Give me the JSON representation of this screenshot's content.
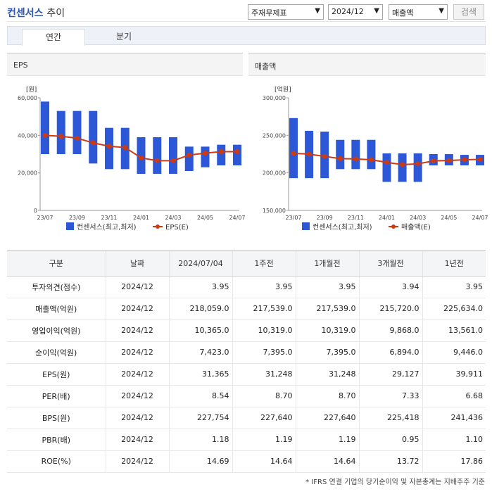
{
  "header": {
    "title": "컨센서스",
    "subtitle": "추이",
    "select_subject": "주재무제표",
    "select_period": "2024/12",
    "select_metric": "매출액",
    "search_label": "검색"
  },
  "tabs": [
    {
      "label": "연간",
      "active": true
    },
    {
      "label": "분기",
      "active": false
    }
  ],
  "colors": {
    "bar": "#2c58d8",
    "line": "#cd3a12",
    "accent": "#2b56b5"
  },
  "chart_data": [
    {
      "type": "bar",
      "title": "EPS",
      "ylabel": "[원]",
      "ylim": [
        0,
        60000
      ],
      "y_ticks": [
        "0",
        "20,000",
        "40,000",
        "60,000"
      ],
      "x_ticks": [
        "23/07",
        "23/09",
        "23/11",
        "24/01",
        "24/03",
        "24/05",
        "24/07"
      ],
      "series": [
        {
          "name": "컨센서스(최고,최저)",
          "type": "range-bar",
          "high": [
            58000,
            53000,
            53000,
            53000,
            44000,
            44000,
            39000,
            39000,
            39000,
            34000,
            34000,
            35000,
            35000
          ],
          "low": [
            30000,
            30000,
            30000,
            25000,
            22000,
            22000,
            19500,
            19500,
            19500,
            21000,
            23000,
            24000,
            24000
          ]
        },
        {
          "name": "EPS(E)",
          "type": "line",
          "values": [
            40000,
            39500,
            38500,
            36000,
            34200,
            33500,
            28000,
            26500,
            26500,
            29500,
            30500,
            31300,
            31300
          ]
        }
      ]
    },
    {
      "type": "bar",
      "title": "매출액",
      "ylabel": "[억원]",
      "ylim": [
        150000,
        300000
      ],
      "y_ticks": [
        "150,000",
        "200,000",
        "250,000",
        "300,000"
      ],
      "x_ticks": [
        "23/07",
        "23/09",
        "23/11",
        "24/01",
        "24/03",
        "24/05",
        "24/07"
      ],
      "series": [
        {
          "name": "컨센서스(최고,최저)",
          "type": "range-bar",
          "high": [
            273000,
            256000,
            255000,
            244000,
            244000,
            244000,
            226000,
            226000,
            226000,
            225000,
            225000,
            224000,
            224000
          ],
          "low": [
            193000,
            193000,
            193000,
            205000,
            205000,
            205000,
            188000,
            188000,
            188000,
            210000,
            210000,
            210000,
            210000
          ]
        },
        {
          "name": "매출액(E)",
          "type": "line",
          "values": [
            226000,
            225000,
            222000,
            219000,
            218500,
            217500,
            214000,
            211000,
            212000,
            216000,
            216500,
            217500,
            218000
          ]
        }
      ]
    }
  ],
  "table": {
    "headers": [
      "구분",
      "날짜",
      "2024/07/04",
      "1주전",
      "1개월전",
      "3개월전",
      "1년전"
    ],
    "rows": [
      [
        "투자의견(점수)",
        "2024/12",
        "3.95",
        "3.95",
        "3.95",
        "3.94",
        "3.95"
      ],
      [
        "매출액(억원)",
        "2024/12",
        "218,059.0",
        "217,539.0",
        "217,539.0",
        "215,720.0",
        "225,634.0"
      ],
      [
        "영업이익(억원)",
        "2024/12",
        "10,365.0",
        "10,319.0",
        "10,319.0",
        "9,868.0",
        "13,561.0"
      ],
      [
        "순이익(억원)",
        "2024/12",
        "7,423.0",
        "7,395.0",
        "7,395.0",
        "6,894.0",
        "9,446.0"
      ],
      [
        "EPS(원)",
        "2024/12",
        "31,365",
        "31,248",
        "31,248",
        "29,127",
        "39,911"
      ],
      [
        "PER(배)",
        "2024/12",
        "8.54",
        "8.70",
        "8.70",
        "7.33",
        "6.68"
      ],
      [
        "BPS(원)",
        "2024/12",
        "227,754",
        "227,640",
        "227,640",
        "225,418",
        "241,436"
      ],
      [
        "PBR(배)",
        "2024/12",
        "1.18",
        "1.19",
        "1.19",
        "0.95",
        "1.10"
      ],
      [
        "ROE(%)",
        "2024/12",
        "14.69",
        "14.64",
        "14.64",
        "13.72",
        "17.86"
      ]
    ]
  },
  "footnote": "* IFRS 연결 기업의 당기순이익 및 자본총계는 지배주주 기준"
}
